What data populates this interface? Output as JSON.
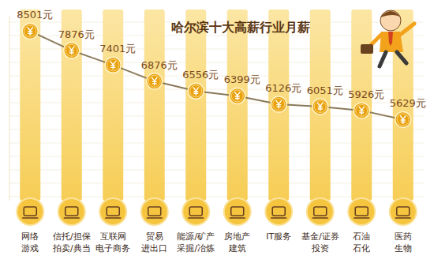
{
  "chart_data": {
    "type": "line",
    "title": "哈尔滨十大高薪行业月薪",
    "categories": [
      "网络\n游戏",
      "信托/担保\n拍卖/典当",
      "互联网\n电子商务",
      "贸易\n进出口",
      "能源/矿产\n采掘/冶炼",
      "房地产\n建筑",
      "IT服务",
      "基金/证券\n投资",
      "石油\n石化",
      "医药\n生物"
    ],
    "values": [
      8501,
      7876,
      7401,
      6876,
      6556,
      6399,
      6126,
      6051,
      5926,
      5629
    ],
    "value_labels": [
      "8501元",
      "7876元",
      "7401元",
      "6876元",
      "6556元",
      "6399元",
      "6126元",
      "6051元",
      "5926元",
      "5629元"
    ],
    "ylim": [
      3000,
      9000
    ],
    "data_labels": true,
    "tick_labels": "x",
    "color": "#8a7a5a",
    "marker": "circle",
    "grid": false
  }
}
